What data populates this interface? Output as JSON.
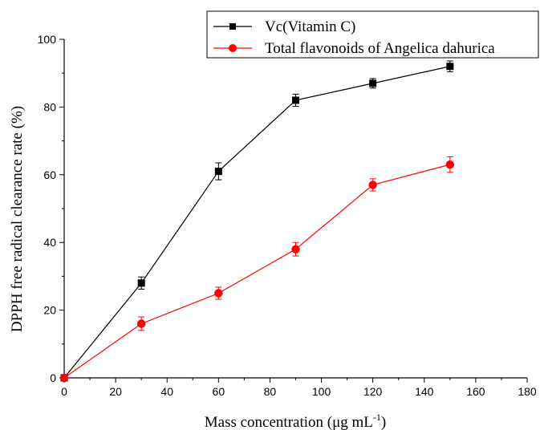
{
  "chart_data": {
    "type": "line",
    "title": "",
    "xlabel_main": "Mass concentration (μg mL",
    "xlabel_sup": "-1",
    "xlabel_tail": ")",
    "ylabel": "DPPH free radical clearance rate (%)",
    "xlim": [
      0,
      180
    ],
    "ylim": [
      0,
      100
    ],
    "x_ticks": [
      0,
      20,
      40,
      60,
      80,
      100,
      120,
      140,
      160,
      180
    ],
    "y_ticks": [
      0,
      20,
      40,
      60,
      80,
      100
    ],
    "grid": false,
    "legend_position": "top-right",
    "x": [
      0,
      30,
      60,
      90,
      120,
      150
    ],
    "series": [
      {
        "name": "Vc(Vitamin C)",
        "color": "#000000",
        "marker": "square",
        "values": [
          0,
          28,
          61,
          82,
          87,
          92
        ],
        "errors": [
          0,
          1.8,
          2.5,
          1.8,
          1.4,
          1.6
        ]
      },
      {
        "name": "Total flavonoids of Angelica dahurica",
        "color": "#ff0000",
        "marker": "circle",
        "values": [
          0,
          16,
          25,
          38,
          57,
          63
        ],
        "errors": [
          0,
          2.0,
          1.8,
          2.0,
          1.8,
          2.3
        ]
      }
    ]
  }
}
